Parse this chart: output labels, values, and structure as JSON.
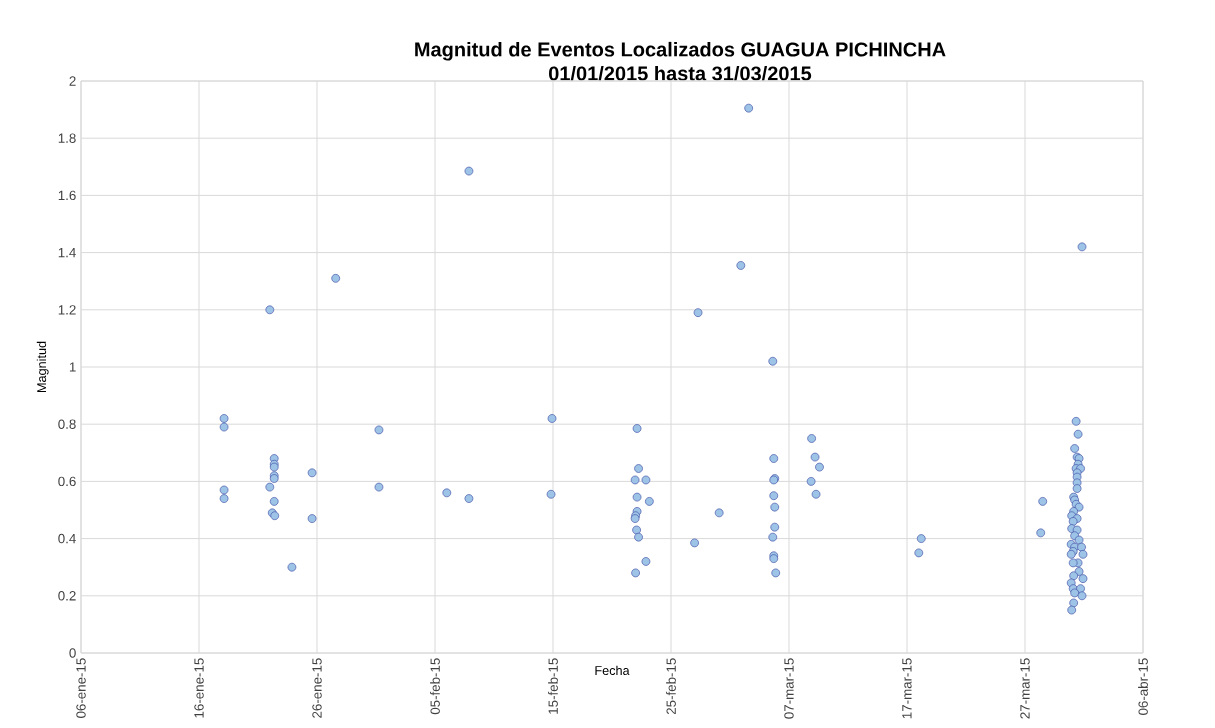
{
  "chart_data": {
    "type": "scatter",
    "title": "Magnitud de Eventos Localizados GUAGUA PICHINCHA",
    "subtitle": "01/01/2015 hasta 31/03/2015",
    "xlabel": "Fecha",
    "ylabel": "Magnitud",
    "x": [
      "2015-01-18T03:00",
      "2015-01-18T03:00",
      "2015-01-18T03:00",
      "2015-01-18T03:00",
      "2015-01-22T00:00",
      "2015-01-22T09:00",
      "2015-01-22T09:00",
      "2015-01-22T09:00",
      "2015-01-22T09:00",
      "2015-01-22T09:00",
      "2015-01-22T00:00",
      "2015-01-22T09:00",
      "2015-01-22T05:00",
      "2015-01-22T10:00",
      "2015-01-23T21:00",
      "2015-01-25T14:00",
      "2015-01-25T14:00",
      "2015-01-27T14:00",
      "2015-01-31T06:00",
      "2015-01-31T06:00",
      "2015-02-06T00:00",
      "2015-02-07T21:00",
      "2015-02-07T21:00",
      "2015-02-14T22:00",
      "2015-02-14T20:00",
      "2015-02-22T03:00",
      "2015-02-22T06:00",
      "2015-02-21T23:00",
      "2015-02-22T21:00",
      "2015-02-22T03:00",
      "2015-02-23T04:00",
      "2015-02-22T03:00",
      "2015-02-22T00:00",
      "2015-02-21T23:00",
      "2015-02-22T02:00",
      "2015-02-22T06:00",
      "2015-02-22T21:00",
      "2015-02-22T00:00",
      "2015-02-27T00:00",
      "2015-02-27T07:00",
      "2015-03-01T02:00",
      "2015-03-02T22:00",
      "2015-03-03T14:00",
      "2015-03-05T15:00",
      "2015-03-05T17:00",
      "2015-03-05T19:00",
      "2015-03-05T17:00",
      "2015-03-05T17:00",
      "2015-03-05T19:00",
      "2015-03-05T19:00",
      "2015-03-05T15:00",
      "2015-03-05T17:00",
      "2015-03-05T17:00",
      "2015-03-05T21:00",
      "2015-03-08T22:00",
      "2015-03-09T05:00",
      "2015-03-09T14:00",
      "2015-03-08T21:00",
      "2015-03-09T07:00",
      "2015-03-18T05:00",
      "2015-03-18T00:00",
      "2015-03-28T12:00",
      "2015-03-28T08:00",
      "2015-03-31T20:00",
      "2015-03-31T08:00",
      "2015-03-31T12:00",
      "2015-03-31T05:00",
      "2015-03-31T10:00",
      "2015-03-31T14:00",
      "2015-03-31T12:00",
      "2015-03-31T08:00",
      "2015-03-31T17:00",
      "2015-03-31T10:00",
      "2015-03-31T10:00",
      "2015-03-31T10:00",
      "2015-03-31T10:00",
      "2015-03-31T03:00",
      "2015-03-31T05:00",
      "2015-03-31T08:00",
      "2015-03-31T14:00",
      "2015-03-31T03:00",
      "2015-03-30T23:00",
      "2015-03-31T10:00",
      "2015-03-31T02:00",
      "2015-03-30T23:00",
      "2015-03-31T10:00",
      "2015-03-31T05:00",
      "2015-03-31T14:00",
      "2015-03-30T22:00",
      "2015-03-31T05:00",
      "2015-03-31T19:00",
      "2015-03-31T02:00",
      "2015-03-30T22:00",
      "2015-03-31T22:00",
      "2015-03-31T12:00",
      "2015-03-31T02:00",
      "2015-03-31T14:00",
      "2015-03-31T03:00",
      "2015-03-31T22:00",
      "2015-03-30T22:00",
      "2015-03-31T02:00",
      "2015-03-31T17:00",
      "2015-03-31T05:00",
      "2015-03-31T20:00",
      "2015-03-31T03:00",
      "2015-03-30T23:00"
    ],
    "values": [
      0.82,
      0.79,
      0.57,
      0.54,
      1.2,
      0.68,
      0.66,
      0.65,
      0.62,
      0.61,
      0.58,
      0.53,
      0.49,
      0.48,
      0.3,
      0.63,
      0.47,
      1.31,
      0.78,
      0.58,
      0.56,
      1.685,
      0.54,
      0.82,
      0.555,
      0.785,
      0.645,
      0.605,
      0.605,
      0.545,
      0.53,
      0.495,
      0.48,
      0.47,
      0.43,
      0.405,
      0.32,
      0.28,
      0.385,
      1.19,
      0.49,
      1.355,
      1.905,
      1.02,
      0.68,
      0.61,
      0.605,
      0.55,
      0.51,
      0.44,
      0.405,
      0.34,
      0.33,
      0.28,
      0.75,
      0.685,
      0.65,
      0.6,
      0.555,
      0.4,
      0.35,
      0.53,
      0.42,
      1.42,
      0.81,
      0.765,
      0.715,
      0.685,
      0.68,
      0.66,
      0.645,
      0.645,
      0.63,
      0.615,
      0.595,
      0.575,
      0.545,
      0.535,
      0.52,
      0.51,
      0.495,
      0.48,
      0.47,
      0.46,
      0.435,
      0.43,
      0.41,
      0.395,
      0.38,
      0.37,
      0.37,
      0.355,
      0.345,
      0.345,
      0.315,
      0.315,
      0.285,
      0.27,
      0.26,
      0.245,
      0.225,
      0.225,
      0.21,
      0.2,
      0.175,
      0.15
    ],
    "color": "#9dc3e6",
    "xlim": [
      "2015-01-06",
      "2015-04-06"
    ],
    "xticks": [
      {
        "value": "2015-01-06",
        "label": "06-ene-15"
      },
      {
        "value": "2015-01-16",
        "label": "16-ene-15"
      },
      {
        "value": "2015-01-26",
        "label": "26-ene-15"
      },
      {
        "value": "2015-02-05",
        "label": "05-feb-15"
      },
      {
        "value": "2015-02-15",
        "label": "15-feb-15"
      },
      {
        "value": "2015-02-25",
        "label": "25-feb-15"
      },
      {
        "value": "2015-03-07",
        "label": "07-mar-15"
      },
      {
        "value": "2015-03-17",
        "label": "17-mar-15"
      },
      {
        "value": "2015-03-27",
        "label": "27-mar-15"
      },
      {
        "value": "2015-04-06",
        "label": "06-abr-15"
      }
    ],
    "ylim": [
      0,
      2
    ],
    "yticks": [
      0,
      0.2,
      0.4,
      0.6,
      0.8,
      1,
      1.2,
      1.4,
      1.6,
      1.8,
      2
    ],
    "grid": true,
    "marker": "circle",
    "legend": false
  }
}
